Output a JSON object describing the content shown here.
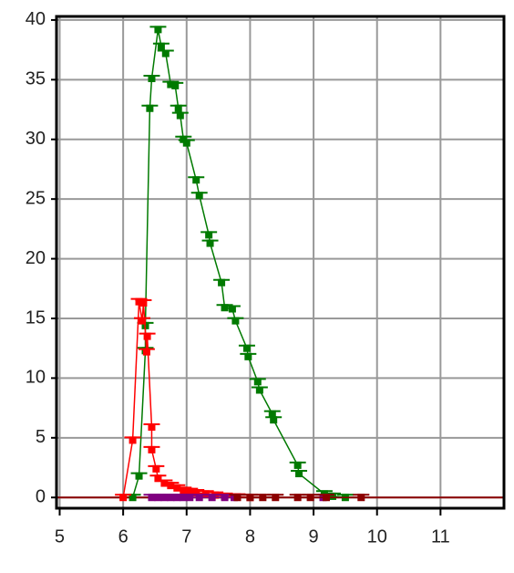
{
  "chart_data": {
    "type": "line",
    "xlim": [
      4.95,
      12
    ],
    "xticks": [
      5,
      6,
      7,
      8,
      9,
      10,
      11
    ],
    "ylim": [
      -0.9,
      40.3
    ],
    "yticks": [
      0,
      5,
      10,
      15,
      20,
      25,
      30,
      35,
      40
    ],
    "grid": true,
    "series": [
      {
        "color": "#007a00",
        "x": [
          6.15,
          6.25,
          6.35,
          6.35,
          6.42,
          6.45,
          6.55,
          6.6,
          6.67,
          6.75,
          6.82,
          6.87,
          6.9,
          6.95,
          7.0,
          7.15,
          7.2,
          7.35,
          7.37,
          7.55,
          7.6,
          7.72,
          7.77,
          7.95,
          7.97,
          8.12,
          8.15,
          8.35,
          8.37,
          8.75,
          8.77,
          9.17,
          9.3,
          9.5
        ],
        "values": [
          0,
          1.8,
          12.3,
          14.4,
          32.6,
          35.1,
          39.2,
          37.8,
          37.2,
          34.6,
          34.5,
          32.6,
          32,
          30,
          29.7,
          26.6,
          25.3,
          22,
          21.3,
          18,
          15.9,
          15.8,
          14.8,
          12.5,
          11.8,
          9.7,
          9,
          7,
          6.5,
          2.7,
          2,
          0.3,
          0.1,
          0
        ]
      },
      {
        "color": "#ff0000",
        "x": [
          6.0,
          6.15,
          6.25,
          6.3,
          6.32,
          6.37,
          6.38,
          6.45,
          6.45,
          6.52,
          6.55,
          6.65,
          6.75,
          6.85,
          6.95,
          7.05,
          7.15,
          7.3,
          7.45,
          7.6,
          7.8,
          8.0
        ],
        "values": [
          0,
          4.8,
          16.4,
          14.8,
          16.3,
          12.2,
          13.5,
          5.9,
          4,
          2.4,
          1.6,
          1.2,
          1,
          0.8,
          0.6,
          0.5,
          0.4,
          0.3,
          0.2,
          0.1,
          0.05,
          0
        ]
      },
      {
        "color": "#800080",
        "x": [
          6.45,
          6.55,
          6.65,
          6.75,
          6.85,
          6.95,
          7.05,
          7.2,
          7.4,
          7.6,
          7.75,
          9.15
        ],
        "values": [
          0,
          0,
          0,
          0,
          0,
          0,
          0,
          0,
          0,
          0,
          0,
          0
        ]
      },
      {
        "color": "#8b0000",
        "x": [
          7.8,
          8.0,
          8.2,
          8.4,
          8.75,
          8.95,
          9.2,
          9.75
        ],
        "values": [
          0,
          0,
          0,
          0,
          0,
          0,
          0,
          0
        ]
      }
    ]
  }
}
